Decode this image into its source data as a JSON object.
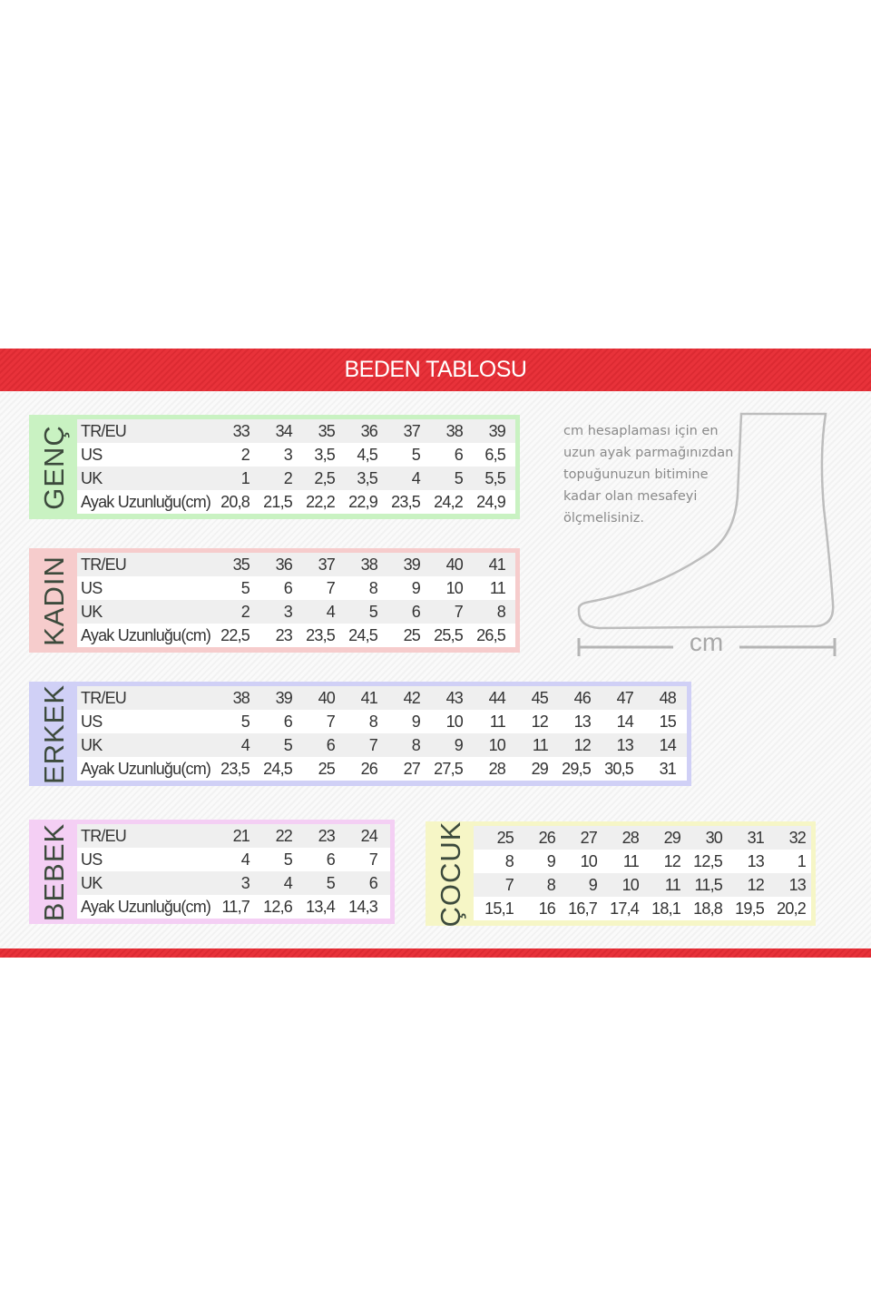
{
  "title": "BEDEN TABLOSU",
  "colors": {
    "band": "#e8323a",
    "genc": "#c9f2c2",
    "kadin": "#f6cccc",
    "erkek": "#d0d0f6",
    "bebek": "#f4cff4",
    "cocuk": "#f6f6c6"
  },
  "info": [
    "cm hesaplaması için en",
    "uzun ayak parmağınızdan",
    "topuğunuzun bitimine",
    "kadar olan mesafeyi",
    "ölçmelisiniz."
  ],
  "measure_label": "cm",
  "tables": [
    {
      "key": "genc",
      "name": "GENÇ",
      "rows": [
        {
          "label": "TR/EU",
          "values": [
            "33",
            "34",
            "35",
            "36",
            "37",
            "38",
            "39"
          ]
        },
        {
          "label": "US",
          "values": [
            "2",
            "3",
            "3,5",
            "4,5",
            "5",
            "6",
            "6,5"
          ]
        },
        {
          "label": "UK",
          "values": [
            "1",
            "2",
            "2,5",
            "3,5",
            "4",
            "5",
            "5,5"
          ]
        },
        {
          "label": "Ayak Uzunluğu(cm)",
          "values": [
            "20,8",
            "21,5",
            "22,2",
            "22,9",
            "23,5",
            "24,2",
            "24,9"
          ]
        }
      ]
    },
    {
      "key": "kadin",
      "name": "KADIN",
      "rows": [
        {
          "label": "TR/EU",
          "values": [
            "35",
            "36",
            "37",
            "38",
            "39",
            "40",
            "41"
          ]
        },
        {
          "label": "US",
          "values": [
            "5",
            "6",
            "7",
            "8",
            "9",
            "10",
            "11"
          ]
        },
        {
          "label": "UK",
          "values": [
            "2",
            "3",
            "4",
            "5",
            "6",
            "7",
            "8"
          ]
        },
        {
          "label": "Ayak Uzunluğu(cm)",
          "values": [
            "22,5",
            "23",
            "23,5",
            "24,5",
            "25",
            "25,5",
            "26,5"
          ]
        }
      ]
    },
    {
      "key": "erkek",
      "name": "ERKEK",
      "rows": [
        {
          "label": "TR/EU",
          "values": [
            "38",
            "39",
            "40",
            "41",
            "42",
            "43",
            "44",
            "45",
            "46",
            "47",
            "48"
          ]
        },
        {
          "label": "US",
          "values": [
            "5",
            "6",
            "7",
            "8",
            "9",
            "10",
            "11",
            "12",
            "13",
            "14",
            "15"
          ]
        },
        {
          "label": "UK",
          "values": [
            "4",
            "5",
            "6",
            "7",
            "8",
            "9",
            "10",
            "11",
            "12",
            "13",
            "14"
          ]
        },
        {
          "label": "Ayak Uzunluğu(cm)",
          "values": [
            "23,5",
            "24,5",
            "25",
            "26",
            "27",
            "27,5",
            "28",
            "29",
            "29,5",
            "30,5",
            "31"
          ]
        }
      ]
    },
    {
      "key": "bebek",
      "name": "BEBEK",
      "rows": [
        {
          "label": "TR/EU",
          "values": [
            "21",
            "22",
            "23",
            "24"
          ]
        },
        {
          "label": "US",
          "values": [
            "4",
            "5",
            "6",
            "7"
          ]
        },
        {
          "label": "UK",
          "values": [
            "3",
            "4",
            "5",
            "6"
          ]
        },
        {
          "label": "Ayak Uzunluğu(cm)",
          "values": [
            "11,7",
            "12,6",
            "13,4",
            "14,3"
          ]
        }
      ]
    },
    {
      "key": "cocuk",
      "name": "ÇOCUK",
      "rows": [
        {
          "values": [
            "25",
            "26",
            "27",
            "28",
            "29",
            "30",
            "31",
            "32"
          ]
        },
        {
          "values": [
            "8",
            "9",
            "10",
            "11",
            "12",
            "12,5",
            "13",
            "1"
          ]
        },
        {
          "values": [
            "7",
            "8",
            "9",
            "10",
            "11",
            "11,5",
            "12",
            "13"
          ]
        },
        {
          "values": [
            "15,1",
            "16",
            "16,7",
            "17,4",
            "18,1",
            "18,8",
            "19,5",
            "20,2"
          ]
        }
      ]
    }
  ]
}
